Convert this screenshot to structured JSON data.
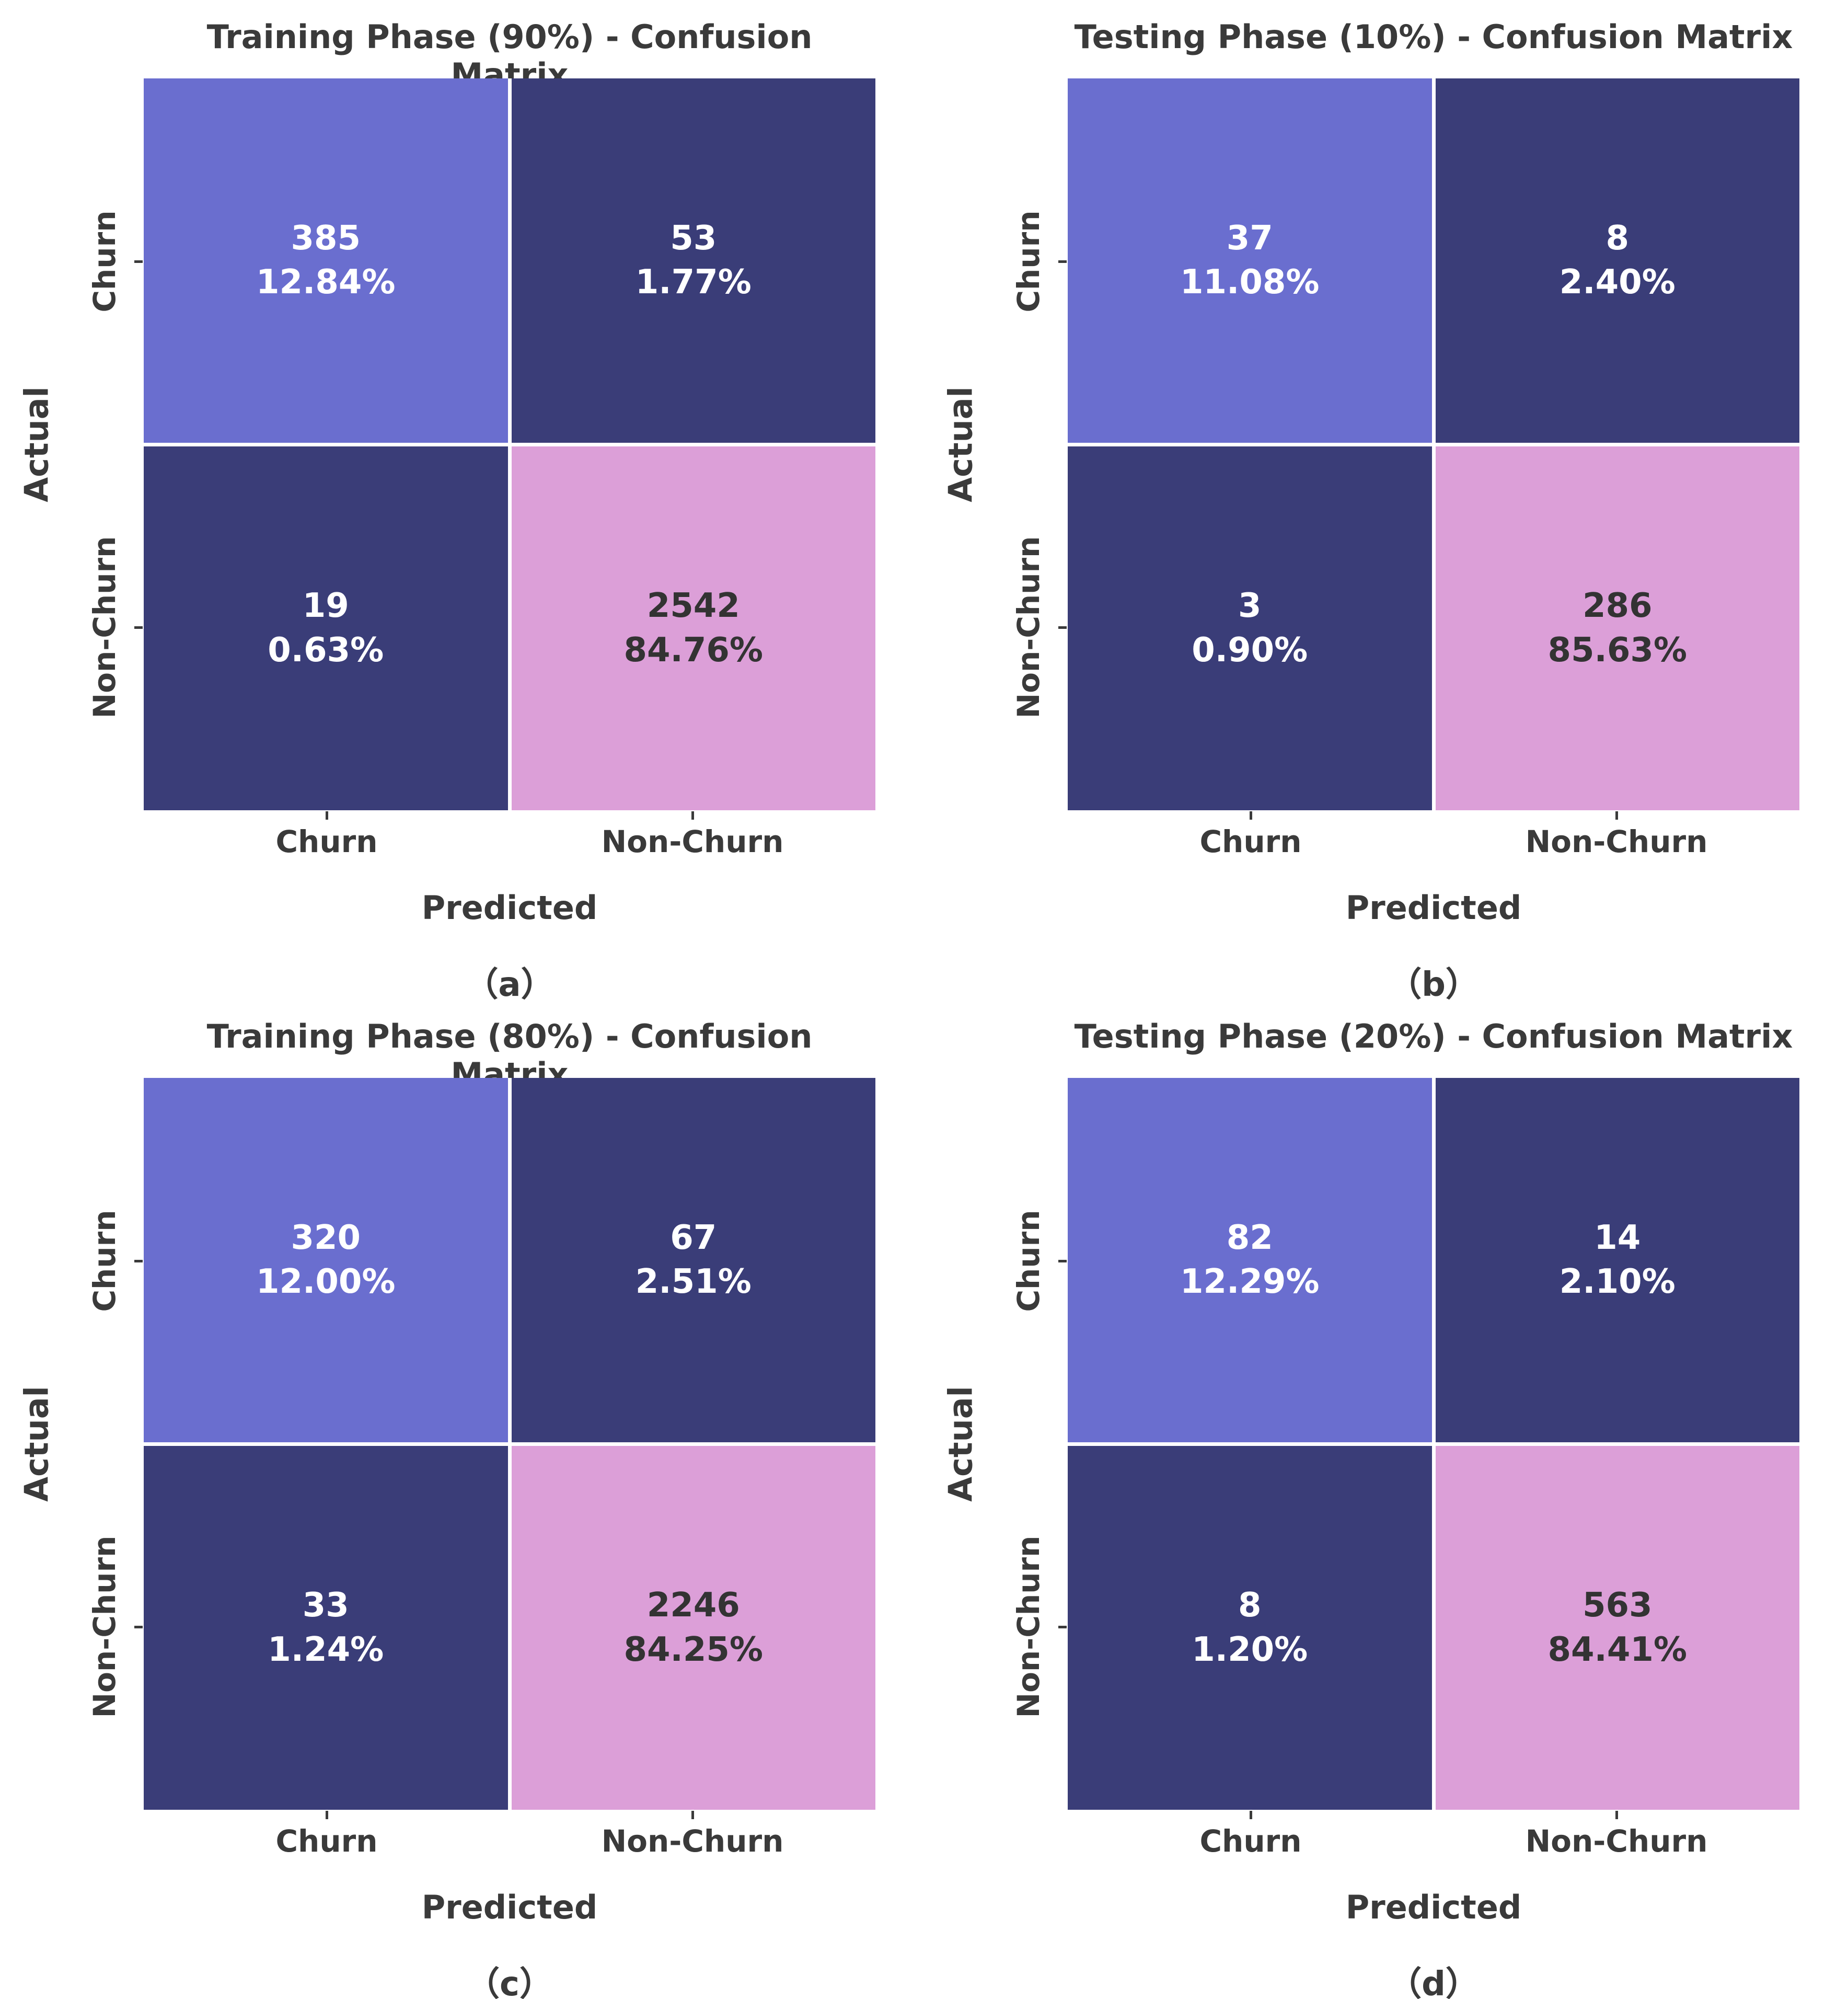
{
  "figure": {
    "panels": [
      {
        "title": "Training Phase (90%) - Confusion Matrix",
        "caption": "（a）",
        "xlabel": "Predicted",
        "ylabel": "Actual",
        "xticks": [
          "Churn",
          "Non-Churn"
        ],
        "yticks": [
          "Churn",
          "Non-Churn"
        ],
        "cells": [
          {
            "count": "385",
            "percent": "12.84%",
            "bg": "#6a6ecf",
            "fg": "#ffffff"
          },
          {
            "count": "53",
            "percent": "1.77%",
            "bg": "#3a3d78",
            "fg": "#ffffff"
          },
          {
            "count": "19",
            "percent": "0.63%",
            "bg": "#3a3d78",
            "fg": "#ffffff"
          },
          {
            "count": "2542",
            "percent": "84.76%",
            "bg": "#dc9fd8",
            "fg": "#333333"
          }
        ]
      },
      {
        "title": "Testing Phase (10%) - Confusion Matrix",
        "caption": "（b）",
        "xlabel": "Predicted",
        "ylabel": "Actual",
        "xticks": [
          "Churn",
          "Non-Churn"
        ],
        "yticks": [
          "Churn",
          "Non-Churn"
        ],
        "cells": [
          {
            "count": "37",
            "percent": "11.08%",
            "bg": "#6a6ecf",
            "fg": "#ffffff"
          },
          {
            "count": "8",
            "percent": "2.40%",
            "bg": "#3a3d78",
            "fg": "#ffffff"
          },
          {
            "count": "3",
            "percent": "0.90%",
            "bg": "#3a3d78",
            "fg": "#ffffff"
          },
          {
            "count": "286",
            "percent": "85.63%",
            "bg": "#dc9fd8",
            "fg": "#333333"
          }
        ]
      },
      {
        "title": "Training Phase (80%) - Confusion Matrix",
        "caption": "（c）",
        "xlabel": "Predicted",
        "ylabel": "Actual",
        "xticks": [
          "Churn",
          "Non-Churn"
        ],
        "yticks": [
          "Churn",
          "Non-Churn"
        ],
        "cells": [
          {
            "count": "320",
            "percent": "12.00%",
            "bg": "#6a6ecf",
            "fg": "#ffffff"
          },
          {
            "count": "67",
            "percent": "2.51%",
            "bg": "#3a3d78",
            "fg": "#ffffff"
          },
          {
            "count": "33",
            "percent": "1.24%",
            "bg": "#3a3d78",
            "fg": "#ffffff"
          },
          {
            "count": "2246",
            "percent": "84.25%",
            "bg": "#dc9fd8",
            "fg": "#333333"
          }
        ]
      },
      {
        "title": "Testing Phase (20%) - Confusion Matrix",
        "caption": "（d）",
        "xlabel": "Predicted",
        "ylabel": "Actual",
        "xticks": [
          "Churn",
          "Non-Churn"
        ],
        "yticks": [
          "Churn",
          "Non-Churn"
        ],
        "cells": [
          {
            "count": "82",
            "percent": "12.29%",
            "bg": "#6a6ecf",
            "fg": "#ffffff"
          },
          {
            "count": "14",
            "percent": "2.10%",
            "bg": "#3a3d78",
            "fg": "#ffffff"
          },
          {
            "count": "8",
            "percent": "1.20%",
            "bg": "#3a3d78",
            "fg": "#ffffff"
          },
          {
            "count": "563",
            "percent": "84.41%",
            "bg": "#dc9fd8",
            "fg": "#333333"
          }
        ]
      }
    ]
  },
  "colors": {
    "cell_light_purple": "#6a6ecf",
    "cell_dark_navy": "#3a3d78",
    "cell_pink": "#dc9fd8",
    "text_on_dark": "#ffffff",
    "text_on_pink": "#333333",
    "axis_text": "#3a3a3a"
  },
  "chart_data": [
    {
      "type": "heatmap",
      "title": "Training Phase (90%) - Confusion Matrix",
      "caption": "（a）",
      "xlabel": "Predicted",
      "ylabel": "Actual",
      "x_categories": [
        "Churn",
        "Non-Churn"
      ],
      "y_categories": [
        "Churn",
        "Non-Churn"
      ],
      "counts": [
        [
          385,
          53
        ],
        [
          19,
          2542
        ]
      ],
      "percents": [
        [
          "12.84%",
          "1.77%"
        ],
        [
          "0.63%",
          "84.76%"
        ]
      ],
      "legend": "none",
      "grid": false
    },
    {
      "type": "heatmap",
      "title": "Testing Phase (10%) - Confusion Matrix",
      "caption": "（b）",
      "xlabel": "Predicted",
      "ylabel": "Actual",
      "x_categories": [
        "Churn",
        "Non-Churn"
      ],
      "y_categories": [
        "Churn",
        "Non-Churn"
      ],
      "counts": [
        [
          37,
          8
        ],
        [
          3,
          286
        ]
      ],
      "percents": [
        [
          "11.08%",
          "2.40%"
        ],
        [
          "0.90%",
          "85.63%"
        ]
      ],
      "legend": "none",
      "grid": false
    },
    {
      "type": "heatmap",
      "title": "Training Phase (80%) - Confusion Matrix",
      "caption": "（c）",
      "xlabel": "Predicted",
      "ylabel": "Actual",
      "x_categories": [
        "Churn",
        "Non-Churn"
      ],
      "y_categories": [
        "Churn",
        "Non-Churn"
      ],
      "counts": [
        [
          320,
          67
        ],
        [
          33,
          2246
        ]
      ],
      "percents": [
        [
          "12.00%",
          "2.51%"
        ],
        [
          "1.24%",
          "84.25%"
        ]
      ],
      "legend": "none",
      "grid": false
    },
    {
      "type": "heatmap",
      "title": "Testing Phase (20%) - Confusion Matrix",
      "caption": "（d）",
      "xlabel": "Predicted",
      "ylabel": "Actual",
      "x_categories": [
        "Churn",
        "Non-Churn"
      ],
      "y_categories": [
        "Churn",
        "Non-Churn"
      ],
      "counts": [
        [
          82,
          14
        ],
        [
          8,
          563
        ]
      ],
      "percents": [
        [
          "12.29%",
          "2.10%"
        ],
        [
          "1.20%",
          "84.41%"
        ]
      ],
      "legend": "none",
      "grid": false
    }
  ]
}
